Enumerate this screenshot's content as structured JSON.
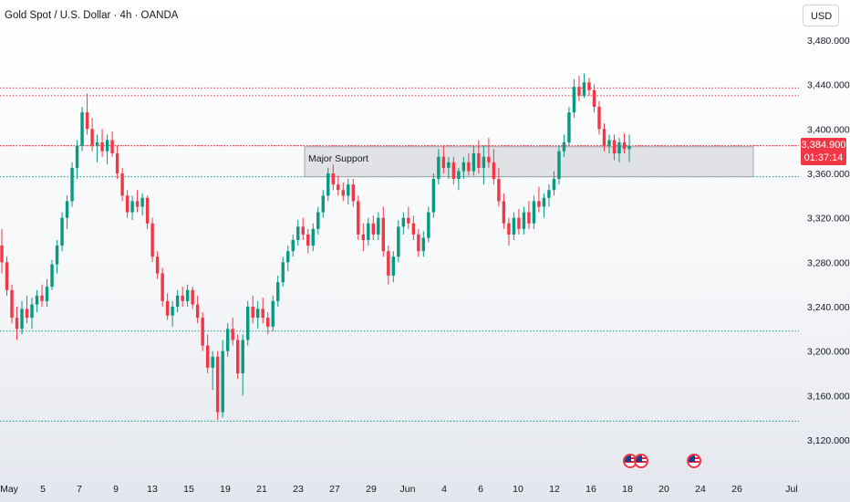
{
  "header": {
    "title": "Gold Spot / U.S. Dollar · 4h · OANDA",
    "currency_button": "USD"
  },
  "price_tag": {
    "price": "3,384.900",
    "countdown": "01:37:14"
  },
  "colors": {
    "up": "#089981",
    "down": "#f23645",
    "resistance_line": "#f23645",
    "support_line": "#089981",
    "zone_fill": "#b2b5be"
  },
  "icons": [
    "us-flag-icon",
    "us-flag-icon",
    "us-flag-icon"
  ],
  "chart_data": {
    "type": "candlestick",
    "symbol": "XAUUSD",
    "timeframe": "4h",
    "x_axis_labels": [
      "May",
      "5",
      "7",
      "9",
      "13",
      "15",
      "19",
      "21",
      "23",
      "27",
      "29",
      "Jun",
      "4",
      "6",
      "10",
      "12",
      "16",
      "18",
      "20",
      "24",
      "26",
      "Jul"
    ],
    "y_ticks": [
      3120,
      3160,
      3200,
      3240,
      3280,
      3320,
      3360,
      3400,
      3440,
      3480
    ],
    "y_tick_labels": [
      "3,120.000",
      "3,160.000",
      "3,200.000",
      "3,240.000",
      "3,280.000",
      "3,320.000",
      "3,360.000",
      "3,400.000",
      "3,440.000",
      "3,480.000"
    ],
    "ylim": [
      3095,
      3500
    ],
    "current_price": 3384.9,
    "horizontal_levels": [
      {
        "price": 3437,
        "color": "red",
        "style": "dotted"
      },
      {
        "price": 3430,
        "color": "red",
        "style": "dotted"
      },
      {
        "price": 3385,
        "color": "red",
        "style": "dotted"
      },
      {
        "price": 3357,
        "color": "green",
        "style": "dotted"
      },
      {
        "price": 3218,
        "color": "green",
        "style": "dotted"
      },
      {
        "price": 3137,
        "color": "green",
        "style": "dotted"
      }
    ],
    "zones": [
      {
        "label": "Major Support",
        "price_top": 3384,
        "price_bottom": 3357,
        "from": "23",
        "to": "25"
      }
    ],
    "ohlc": [
      [
        3295,
        3310,
        3270,
        3280
      ],
      [
        3280,
        3285,
        3250,
        3255
      ],
      [
        3255,
        3260,
        3225,
        3230
      ],
      [
        3230,
        3240,
        3210,
        3220
      ],
      [
        3220,
        3245,
        3215,
        3238
      ],
      [
        3238,
        3250,
        3225,
        3230
      ],
      [
        3230,
        3248,
        3220,
        3242
      ],
      [
        3242,
        3255,
        3235,
        3250
      ],
      [
        3250,
        3260,
        3240,
        3245
      ],
      [
        3245,
        3265,
        3240,
        3258
      ],
      [
        3258,
        3282,
        3255,
        3278
      ],
      [
        3278,
        3300,
        3270,
        3295
      ],
      [
        3295,
        3325,
        3290,
        3320
      ],
      [
        3320,
        3340,
        3310,
        3335
      ],
      [
        3335,
        3370,
        3330,
        3365
      ],
      [
        3365,
        3390,
        3355,
        3385
      ],
      [
        3385,
        3420,
        3380,
        3415
      ],
      [
        3415,
        3432,
        3395,
        3400
      ],
      [
        3400,
        3410,
        3380,
        3385
      ],
      [
        3385,
        3395,
        3370,
        3388
      ],
      [
        3388,
        3400,
        3375,
        3380
      ],
      [
        3380,
        3395,
        3368,
        3390
      ],
      [
        3390,
        3398,
        3375,
        3378
      ],
      [
        3378,
        3385,
        3355,
        3360
      ],
      [
        3360,
        3365,
        3335,
        3340
      ],
      [
        3340,
        3345,
        3320,
        3325
      ],
      [
        3325,
        3340,
        3318,
        3335
      ],
      [
        3335,
        3345,
        3325,
        3330
      ],
      [
        3330,
        3342,
        3322,
        3338
      ],
      [
        3338,
        3340,
        3310,
        3315
      ],
      [
        3315,
        3320,
        3280,
        3285
      ],
      [
        3285,
        3290,
        3265,
        3270
      ],
      [
        3270,
        3275,
        3240,
        3245
      ],
      [
        3245,
        3252,
        3228,
        3232
      ],
      [
        3232,
        3245,
        3222,
        3240
      ],
      [
        3240,
        3255,
        3235,
        3250
      ],
      [
        3250,
        3258,
        3240,
        3245
      ],
      [
        3245,
        3260,
        3240,
        3255
      ],
      [
        3255,
        3258,
        3238,
        3242
      ],
      [
        3242,
        3250,
        3225,
        3230
      ],
      [
        3230,
        3235,
        3200,
        3205
      ],
      [
        3205,
        3215,
        3180,
        3185
      ],
      [
        3185,
        3200,
        3165,
        3195
      ],
      [
        3195,
        3200,
        3138,
        3145
      ],
      [
        3145,
        3210,
        3140,
        3200
      ],
      [
        3200,
        3225,
        3195,
        3220
      ],
      [
        3220,
        3230,
        3205,
        3210
      ],
      [
        3210,
        3215,
        3175,
        3180
      ],
      [
        3180,
        3215,
        3160,
        3210
      ],
      [
        3210,
        3245,
        3205,
        3240
      ],
      [
        3240,
        3250,
        3225,
        3230
      ],
      [
        3230,
        3245,
        3220,
        3238
      ],
      [
        3238,
        3248,
        3225,
        3230
      ],
      [
        3230,
        3235,
        3215,
        3222
      ],
      [
        3222,
        3250,
        3218,
        3245
      ],
      [
        3245,
        3268,
        3240,
        3262
      ],
      [
        3262,
        3285,
        3258,
        3280
      ],
      [
        3280,
        3295,
        3272,
        3290
      ],
      [
        3290,
        3305,
        3285,
        3300
      ],
      [
        3300,
        3318,
        3295,
        3312
      ],
      [
        3312,
        3320,
        3300,
        3305
      ],
      [
        3305,
        3310,
        3288,
        3295
      ],
      [
        3295,
        3315,
        3290,
        3310
      ],
      [
        3310,
        3330,
        3305,
        3325
      ],
      [
        3325,
        3345,
        3320,
        3340
      ],
      [
        3340,
        3365,
        3335,
        3360
      ],
      [
        3360,
        3368,
        3345,
        3350
      ],
      [
        3350,
        3358,
        3340,
        3345
      ],
      [
        3345,
        3352,
        3335,
        3340
      ],
      [
        3340,
        3355,
        3332,
        3350
      ],
      [
        3350,
        3355,
        3330,
        3335
      ],
      [
        3335,
        3340,
        3300,
        3305
      ],
      [
        3305,
        3315,
        3290,
        3300
      ],
      [
        3300,
        3320,
        3295,
        3315
      ],
      [
        3315,
        3322,
        3300,
        3305
      ],
      [
        3305,
        3325,
        3300,
        3320
      ],
      [
        3320,
        3330,
        3285,
        3290
      ],
      [
        3290,
        3295,
        3260,
        3268
      ],
      [
        3268,
        3290,
        3262,
        3285
      ],
      [
        3285,
        3318,
        3280,
        3312
      ],
      [
        3312,
        3325,
        3305,
        3320
      ],
      [
        3320,
        3330,
        3310,
        3315
      ],
      [
        3315,
        3322,
        3300,
        3305
      ],
      [
        3305,
        3310,
        3285,
        3290
      ],
      [
        3290,
        3308,
        3285,
        3302
      ],
      [
        3302,
        3330,
        3298,
        3325
      ],
      [
        3325,
        3360,
        3320,
        3355
      ],
      [
        3355,
        3382,
        3350,
        3375
      ],
      [
        3375,
        3385,
        3360,
        3365
      ],
      [
        3365,
        3375,
        3355,
        3370
      ],
      [
        3370,
        3375,
        3350,
        3355
      ],
      [
        3355,
        3365,
        3345,
        3362
      ],
      [
        3362,
        3375,
        3355,
        3370
      ],
      [
        3370,
        3378,
        3358,
        3362
      ],
      [
        3362,
        3385,
        3358,
        3378
      ],
      [
        3378,
        3390,
        3360,
        3365
      ],
      [
        3365,
        3385,
        3350,
        3375
      ],
      [
        3375,
        3392,
        3365,
        3370
      ],
      [
        3370,
        3382,
        3350,
        3355
      ],
      [
        3355,
        3365,
        3330,
        3335
      ],
      [
        3335,
        3342,
        3310,
        3315
      ],
      [
        3315,
        3320,
        3295,
        3305
      ],
      [
        3305,
        3325,
        3300,
        3320
      ],
      [
        3320,
        3328,
        3305,
        3310
      ],
      [
        3310,
        3330,
        3305,
        3325
      ],
      [
        3325,
        3335,
        3310,
        3315
      ],
      [
        3315,
        3340,
        3310,
        3335
      ],
      [
        3335,
        3348,
        3325,
        3330
      ],
      [
        3330,
        3342,
        3320,
        3338
      ],
      [
        3338,
        3350,
        3330,
        3345
      ],
      [
        3345,
        3362,
        3340,
        3355
      ],
      [
        3355,
        3385,
        3350,
        3380
      ],
      [
        3380,
        3395,
        3375,
        3388
      ],
      [
        3388,
        3420,
        3385,
        3415
      ],
      [
        3415,
        3445,
        3410,
        3438
      ],
      [
        3438,
        3448,
        3425,
        3430
      ],
      [
        3430,
        3450,
        3428,
        3442
      ],
      [
        3442,
        3446,
        3430,
        3435
      ],
      [
        3435,
        3440,
        3415,
        3420
      ],
      [
        3420,
        3425,
        3395,
        3400
      ],
      [
        3400,
        3405,
        3380,
        3385
      ],
      [
        3385,
        3395,
        3378,
        3390
      ],
      [
        3390,
        3395,
        3372,
        3378
      ],
      [
        3378,
        3392,
        3370,
        3388
      ],
      [
        3388,
        3396,
        3378,
        3382
      ],
      [
        3382,
        3395,
        3370,
        3385
      ]
    ]
  }
}
